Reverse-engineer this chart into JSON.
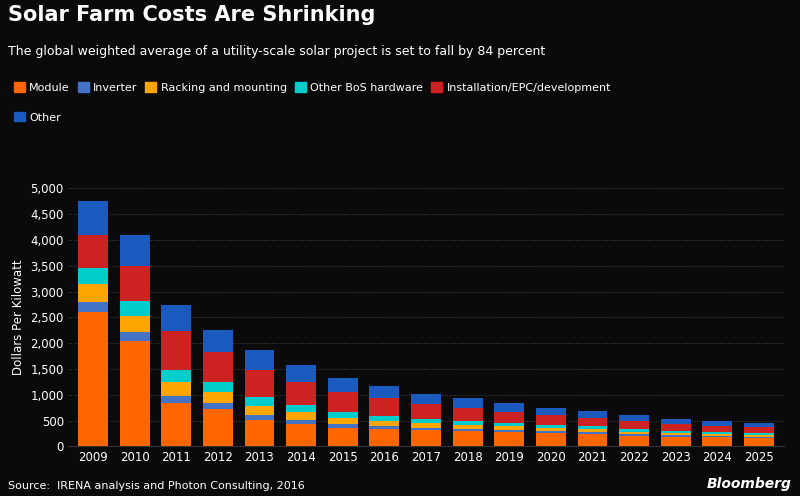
{
  "title": "Solar Farm Costs Are Shrinking",
  "subtitle": "The global weighted average of a utility-scale solar project is set to fall by 84 percent",
  "ylabel": "Dollars Per Kilowatt",
  "source": "Source:  IRENA analysis and Photon Consulting, 2016",
  "background_color": "#0a0a0a",
  "text_color": "#ffffff",
  "years": [
    2009,
    2010,
    2011,
    2012,
    2013,
    2014,
    2015,
    2016,
    2017,
    2018,
    2019,
    2020,
    2021,
    2022,
    2023,
    2024,
    2025
  ],
  "series": {
    "Module": [
      2600,
      2050,
      840,
      730,
      510,
      440,
      360,
      340,
      310,
      295,
      275,
      255,
      235,
      205,
      185,
      175,
      165
    ],
    "Inverter": [
      200,
      160,
      140,
      120,
      95,
      80,
      68,
      58,
      52,
      47,
      43,
      40,
      37,
      33,
      30,
      27,
      25
    ],
    "Racking and mounting": [
      350,
      320,
      270,
      210,
      185,
      150,
      115,
      100,
      88,
      77,
      70,
      62,
      56,
      50,
      44,
      39,
      35
    ],
    "Other BoS hardware": [
      300,
      280,
      240,
      195,
      170,
      140,
      115,
      100,
      88,
      80,
      72,
      64,
      58,
      51,
      46,
      41,
      37
    ],
    "Installation/EPC/development": [
      650,
      680,
      750,
      580,
      530,
      440,
      390,
      340,
      275,
      245,
      215,
      190,
      170,
      152,
      132,
      118,
      108
    ],
    "Other": [
      650,
      610,
      510,
      430,
      370,
      320,
      275,
      240,
      210,
      185,
      162,
      143,
      128,
      114,
      100,
      90,
      82
    ]
  },
  "colors": {
    "Module": "#ff6600",
    "Inverter": "#4472c4",
    "Racking and mounting": "#ffa500",
    "Other BoS hardware": "#00cccc",
    "Installation/EPC/development": "#cc2222",
    "Other": "#1a5abf"
  },
  "stack_order": [
    "Module",
    "Inverter",
    "Racking and mounting",
    "Other BoS hardware",
    "Installation/EPC/development",
    "Other"
  ],
  "legend_order": [
    "Module",
    "Inverter",
    "Racking and mounting",
    "Other BoS hardware",
    "Installation/EPC/development",
    "Other"
  ],
  "ylim": [
    0,
    5000
  ],
  "yticks": [
    0,
    500,
    1000,
    1500,
    2000,
    2500,
    3000,
    3500,
    4000,
    4500,
    5000
  ]
}
